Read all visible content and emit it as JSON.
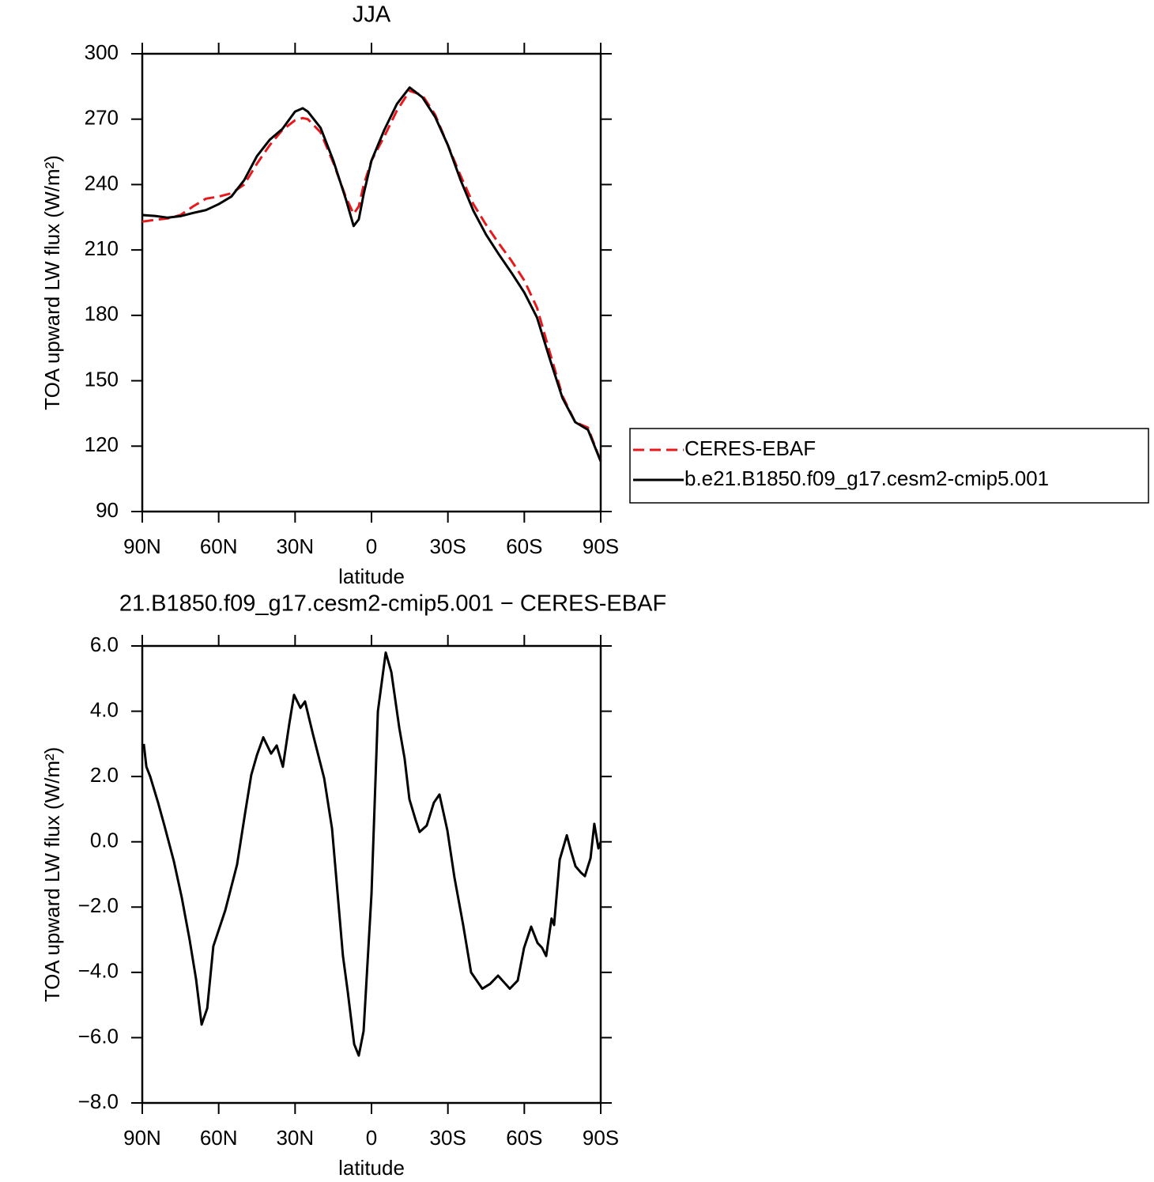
{
  "chart_data": [
    {
      "type": "line",
      "title": "JJA",
      "xlabel": "latitude",
      "ylabel": "TOA upward LW flux (W/m²)",
      "xlim": [
        90,
        -90
      ],
      "ylim": [
        90,
        300
      ],
      "xticks": [
        {
          "value": 90,
          "label": "90N"
        },
        {
          "value": 60,
          "label": "60N"
        },
        {
          "value": 30,
          "label": "30N"
        },
        0,
        {
          "value": -30,
          "label": "30S"
        },
        {
          "value": -60,
          "label": "60S"
        },
        {
          "value": -90,
          "label": "90S"
        }
      ],
      "yticks": [
        90,
        120,
        150,
        180,
        210,
        240,
        270,
        300
      ],
      "legend": "right",
      "x": [
        90,
        85,
        80,
        75,
        70,
        65,
        60,
        55,
        50,
        45,
        40,
        35,
        30,
        27,
        25,
        20,
        15,
        10,
        7,
        5,
        3,
        0,
        -5,
        -10,
        -15,
        -20,
        -25,
        -30,
        -35,
        -40,
        -45,
        -50,
        -55,
        -60,
        -65,
        -70,
        -75,
        -80,
        -85,
        -90
      ],
      "series": [
        {
          "name": "CERES-EBAF",
          "color": "#e8191c",
          "dashed": true,
          "values": [
            223,
            223.8,
            224.5,
            226,
            230,
            233.5,
            234.5,
            236,
            240,
            249.5,
            258,
            265,
            269.5,
            270.5,
            270,
            264,
            250,
            234,
            226.5,
            230,
            240,
            251,
            262,
            274,
            283,
            281,
            272,
            258,
            244,
            231,
            221.5,
            213,
            205,
            196,
            183.5,
            163,
            143,
            131,
            128.5,
            113
          ]
        },
        {
          "name": "b.e21.B1850.f09_g17.cesm2-cmip5.001",
          "color": "#000000",
          "dashed": false,
          "values": [
            226,
            225.6,
            224.8,
            225.5,
            227,
            228.3,
            231,
            234.5,
            242,
            253,
            260.5,
            265.5,
            273.5,
            275,
            273.5,
            266,
            251,
            233,
            221,
            224,
            236,
            251,
            265,
            277,
            284.5,
            280,
            271,
            258,
            242,
            228,
            217,
            208,
            199.5,
            190.5,
            179,
            160,
            142,
            131,
            127.5,
            113
          ]
        }
      ]
    },
    {
      "type": "line",
      "title": "21.B1850.f09_g17.cesm2-cmip5.001 − CERES-EBAF",
      "xlabel": "latitude",
      "ylabel": "TOA upward LW flux (W/m²)",
      "xlim": [
        90,
        -90
      ],
      "ylim": [
        -8,
        6
      ],
      "xticks": [
        {
          "value": 90,
          "label": "90N"
        },
        {
          "value": 60,
          "label": "60N"
        },
        {
          "value": 30,
          "label": "30N"
        },
        0,
        {
          "value": -30,
          "label": "30S"
        },
        {
          "value": -60,
          "label": "60S"
        },
        {
          "value": -90,
          "label": "90S"
        }
      ],
      "yticks": [
        {
          "value": -8,
          "label": "−8.0"
        },
        {
          "value": -6,
          "label": "−6.0"
        },
        {
          "value": -4,
          "label": "−4.0"
        },
        {
          "value": -2,
          "label": "−2.0"
        },
        {
          "value": 0,
          "label": "0.0"
        },
        {
          "value": 2,
          "label": "2.0"
        },
        {
          "value": 4,
          "label": "4.0"
        },
        {
          "value": 6,
          "label": "6.0"
        }
      ],
      "x": [
        89.4,
        88.4,
        86.9,
        83.8,
        81.3,
        77.6,
        74.5,
        71.4,
        68.9,
        66.7,
        64.5,
        62.1,
        57.4,
        52.8,
        49.7,
        47.2,
        45.0,
        42.5,
        39.4,
        37.2,
        34.8,
        32.3,
        30.4,
        27.9,
        26.1,
        23.0,
        18.6,
        15.5,
        11.2,
        9.3,
        6.8,
        5.0,
        3.1,
        0,
        -2.5,
        -5.6,
        -7.8,
        -10.9,
        -13.0,
        -14.9,
        -17.4,
        -18.9,
        -21.7,
        -24.5,
        -26.7,
        -29.8,
        -32.6,
        -36.0,
        -39.1,
        -43.5,
        -46.6,
        -49.7,
        -54.3,
        -57.4,
        -59.9,
        -62.7,
        -65.2,
        -67.0,
        -68.6,
        -70.7,
        -71.7,
        -73.9,
        -76.7,
        -78.2,
        -80.1,
        -82.3,
        -83.8,
        -86.0,
        -87.5,
        -89.1,
        -90
      ],
      "series": [
        {
          "name": "b.e21.B1850.f09_g17.cesm2-cmip5.001",
          "color": "#000000",
          "dashed": false,
          "values": [
            3.0,
            2.3,
            2.0,
            1.2,
            0.5,
            -0.6,
            -1.7,
            -3.0,
            -4.2,
            -5.6,
            -5.1,
            -3.2,
            -2.1,
            -0.7,
            0.85,
            2.05,
            2.65,
            3.2,
            2.7,
            2.95,
            2.3,
            3.6,
            4.5,
            4.1,
            4.3,
            3.3,
            1.95,
            0.4,
            -3.5,
            -4.6,
            -6.2,
            -6.55,
            -5.8,
            -1.6,
            4.0,
            5.8,
            5.2,
            3.5,
            2.55,
            1.3,
            0.65,
            0.3,
            0.5,
            1.2,
            1.45,
            0.35,
            -1.1,
            -2.55,
            -4.0,
            -4.5,
            -4.35,
            -4.1,
            -4.5,
            -4.25,
            -3.25,
            -2.6,
            -3.1,
            -3.25,
            -3.5,
            -2.35,
            -2.55,
            -0.55,
            0.2,
            -0.25,
            -0.75,
            -0.95,
            -1.05,
            -0.5,
            0.55,
            -0.2,
            0.0
          ]
        }
      ]
    }
  ]
}
